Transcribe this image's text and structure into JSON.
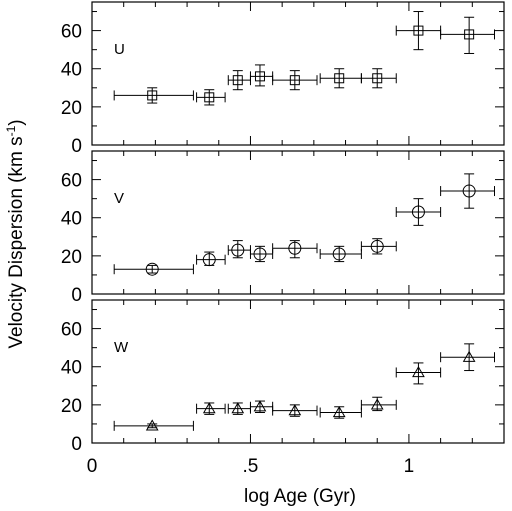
{
  "chart_data": {
    "type": "scatter",
    "xlabel": "log Age (Gyr)",
    "ylabel": "Velocity Dispersion (km s",
    "ylabel_sup": "-1",
    "ylabel_close": ")",
    "xlim": [
      0,
      1.3
    ],
    "xticks": [
      0,
      0.5,
      1
    ],
    "xtick_labels": [
      "0",
      ".5",
      "1"
    ],
    "panels": [
      {
        "label": "U",
        "marker": "square",
        "ylim": [
          0,
          75
        ],
        "yticks": [
          0,
          20,
          40,
          60
        ],
        "ytick_labels": [
          "0",
          "20",
          "40",
          "60"
        ],
        "points": [
          {
            "x": 0.19,
            "y": 26,
            "xlo": 0.07,
            "xhi": 0.32,
            "ylo": 22,
            "yhi": 30
          },
          {
            "x": 0.37,
            "y": 25,
            "xlo": 0.33,
            "xhi": 0.42,
            "ylo": 21,
            "yhi": 29
          },
          {
            "x": 0.46,
            "y": 34,
            "xlo": 0.43,
            "xhi": 0.5,
            "ylo": 29,
            "yhi": 39
          },
          {
            "x": 0.53,
            "y": 36,
            "xlo": 0.5,
            "xhi": 0.57,
            "ylo": 31,
            "yhi": 42
          },
          {
            "x": 0.64,
            "y": 34,
            "xlo": 0.57,
            "xhi": 0.71,
            "ylo": 29,
            "yhi": 39
          },
          {
            "x": 0.78,
            "y": 35,
            "xlo": 0.72,
            "xhi": 0.85,
            "ylo": 30,
            "yhi": 40
          },
          {
            "x": 0.9,
            "y": 35,
            "xlo": 0.85,
            "xhi": 0.96,
            "ylo": 30,
            "yhi": 40
          },
          {
            "x": 1.03,
            "y": 60,
            "xlo": 0.96,
            "xhi": 1.1,
            "ylo": 50,
            "yhi": 70
          },
          {
            "x": 1.19,
            "y": 58,
            "xlo": 1.1,
            "xhi": 1.27,
            "ylo": 48,
            "yhi": 67
          }
        ]
      },
      {
        "label": "V",
        "marker": "circle",
        "ylim": [
          0,
          75
        ],
        "yticks": [
          0,
          20,
          40,
          60
        ],
        "ytick_labels": [
          "0",
          "20",
          "40",
          "60"
        ],
        "points": [
          {
            "x": 0.19,
            "y": 13,
            "xlo": 0.07,
            "xhi": 0.32,
            "ylo": 11,
            "yhi": 15
          },
          {
            "x": 0.37,
            "y": 18,
            "xlo": 0.33,
            "xhi": 0.42,
            "ylo": 15,
            "yhi": 22
          },
          {
            "x": 0.46,
            "y": 23,
            "xlo": 0.43,
            "xhi": 0.5,
            "ylo": 19,
            "yhi": 28
          },
          {
            "x": 0.53,
            "y": 21,
            "xlo": 0.5,
            "xhi": 0.57,
            "ylo": 17,
            "yhi": 25
          },
          {
            "x": 0.64,
            "y": 24,
            "xlo": 0.57,
            "xhi": 0.71,
            "ylo": 19,
            "yhi": 28
          },
          {
            "x": 0.78,
            "y": 21,
            "xlo": 0.72,
            "xhi": 0.85,
            "ylo": 17,
            "yhi": 25
          },
          {
            "x": 0.9,
            "y": 25,
            "xlo": 0.85,
            "xhi": 0.96,
            "ylo": 21,
            "yhi": 29
          },
          {
            "x": 1.03,
            "y": 43,
            "xlo": 0.96,
            "xhi": 1.1,
            "ylo": 36,
            "yhi": 50
          },
          {
            "x": 1.19,
            "y": 54,
            "xlo": 1.1,
            "xhi": 1.27,
            "ylo": 45,
            "yhi": 63
          }
        ]
      },
      {
        "label": "W",
        "marker": "triangle",
        "ylim": [
          0,
          75
        ],
        "yticks": [
          0,
          20,
          40,
          60
        ],
        "ytick_labels": [
          "0",
          "20",
          "40",
          "60"
        ],
        "points": [
          {
            "x": 0.19,
            "y": 9,
            "xlo": 0.07,
            "xhi": 0.32,
            "ylo": 8,
            "yhi": 10
          },
          {
            "x": 0.37,
            "y": 18,
            "xlo": 0.33,
            "xhi": 0.42,
            "ylo": 15,
            "yhi": 21
          },
          {
            "x": 0.46,
            "y": 18,
            "xlo": 0.43,
            "xhi": 0.5,
            "ylo": 15,
            "yhi": 21
          },
          {
            "x": 0.53,
            "y": 19,
            "xlo": 0.5,
            "xhi": 0.57,
            "ylo": 16,
            "yhi": 22
          },
          {
            "x": 0.64,
            "y": 17,
            "xlo": 0.57,
            "xhi": 0.71,
            "ylo": 14,
            "yhi": 20
          },
          {
            "x": 0.78,
            "y": 16,
            "xlo": 0.72,
            "xhi": 0.85,
            "ylo": 13,
            "yhi": 19
          },
          {
            "x": 0.9,
            "y": 20,
            "xlo": 0.85,
            "xhi": 0.96,
            "ylo": 17,
            "yhi": 24
          },
          {
            "x": 1.03,
            "y": 37,
            "xlo": 0.96,
            "xhi": 1.1,
            "ylo": 31,
            "yhi": 42
          },
          {
            "x": 1.19,
            "y": 45,
            "xlo": 1.1,
            "xhi": 1.27,
            "ylo": 38,
            "yhi": 52
          }
        ]
      }
    ]
  }
}
